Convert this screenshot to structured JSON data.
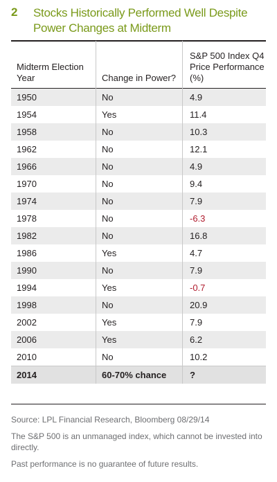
{
  "title": {
    "number": "2",
    "text": "Stocks Historically Performed Well Despite Power Changes at Midterm"
  },
  "table": {
    "headers": {
      "year": "Midterm Election Year",
      "change": "Change in Power?",
      "perf": "S&P 500 Index Q4 Price Performance (%)"
    },
    "rows": [
      {
        "year": "1950",
        "change": "No",
        "perf": "4.9"
      },
      {
        "year": "1954",
        "change": "Yes",
        "perf": "11.4"
      },
      {
        "year": "1958",
        "change": "No",
        "perf": "10.3"
      },
      {
        "year": "1962",
        "change": "No",
        "perf": "12.1"
      },
      {
        "year": "1966",
        "change": "No",
        "perf": "4.9"
      },
      {
        "year": "1970",
        "change": "No",
        "perf": "9.4"
      },
      {
        "year": "1974",
        "change": "No",
        "perf": "7.9"
      },
      {
        "year": "1978",
        "change": "No",
        "perf": "-6.3"
      },
      {
        "year": "1982",
        "change": "No",
        "perf": "16.8"
      },
      {
        "year": "1986",
        "change": "Yes",
        "perf": "4.7"
      },
      {
        "year": "1990",
        "change": "No",
        "perf": "7.9"
      },
      {
        "year": "1994",
        "change": "Yes",
        "perf": "-0.7"
      },
      {
        "year": "1998",
        "change": "No",
        "perf": "20.9"
      },
      {
        "year": "2002",
        "change": "Yes",
        "perf": "7.9"
      },
      {
        "year": "2006",
        "change": "Yes",
        "perf": "6.2"
      },
      {
        "year": "2010",
        "change": "No",
        "perf": "10.2"
      }
    ],
    "final_row": {
      "year": "2014",
      "change": "60-70% chance",
      "perf": "?"
    }
  },
  "footnotes": {
    "source": "Source: LPL Financial Research, Bloomberg   08/29/14",
    "note": "The S&P 500 is an unmanaged index, which cannot be invested into directly.",
    "disclaimer": "Past performance is no guarantee of future results."
  },
  "colors": {
    "title_green": "#7a9a1a",
    "negative_red": "#b01c2e",
    "row_shade": "#ebebeb"
  }
}
